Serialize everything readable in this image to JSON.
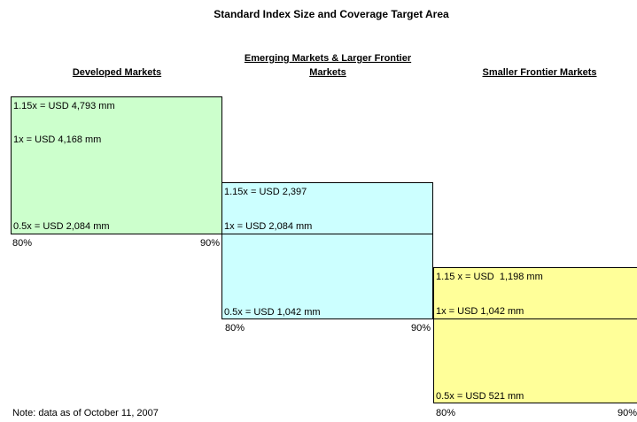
{
  "title": "Standard Index Size and Coverage Target Area",
  "columns": [
    {
      "header": [
        "Developed Markets"
      ],
      "levels": [
        "1.15x = USD 4,793 mm",
        "1x = USD 4,168 mm",
        "0.5x = USD 2,084 mm"
      ],
      "range": [
        "80%",
        "90%"
      ]
    },
    {
      "header": [
        "Emerging Markets & Larger Frontier",
        "Markets"
      ],
      "levels": [
        "1.15x = USD 2,397",
        "1x = USD 2,084 mm",
        "0.5x = USD 1,042 mm"
      ],
      "range": [
        "80%",
        "90%"
      ]
    },
    {
      "header": [
        "Smaller Frontier Markets"
      ],
      "levels": [
        "1.15 x = USD  1,198 mm",
        "1x = USD 1,042 mm",
        "0.5x = USD 521 mm"
      ],
      "range": [
        "80%",
        "90%"
      ]
    }
  ],
  "note": "Note: data as of October 11, 2007"
}
